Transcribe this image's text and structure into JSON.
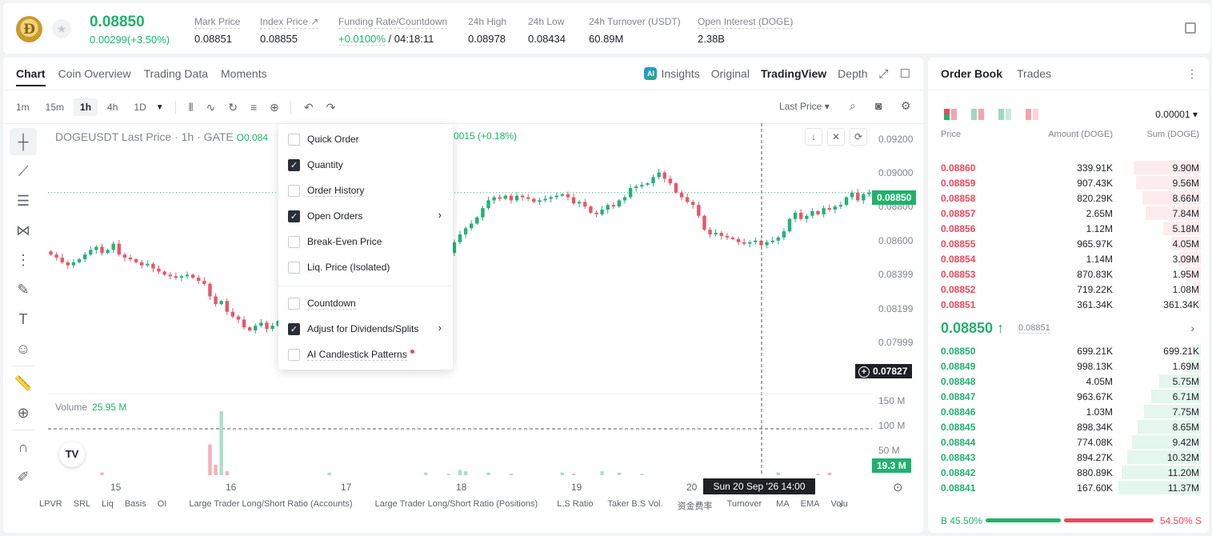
{
  "header": {
    "coin_symbol": "Ð",
    "last_price": "0.08850",
    "change": "0.00299(+3.50%)",
    "stats": [
      {
        "label": "Mark Price",
        "value": "0.08851"
      },
      {
        "label": "Index Price ↗",
        "value": "0.08855"
      },
      {
        "label": "Funding Rate/Countdown",
        "value_green": "+0.0100%",
        "value": " / 04:18:11"
      },
      {
        "label": "24h High",
        "value": "0.08978"
      },
      {
        "label": "24h Low",
        "value": "0.08434"
      },
      {
        "label": "24h Turnover (USDT)",
        "value": "60.89M"
      },
      {
        "label": "Open Interest (DOGE)",
        "value": "2.38B"
      }
    ]
  },
  "chart_tabs": [
    "Chart",
    "Coin Overview",
    "Trading Data",
    "Moments"
  ],
  "view_tabs": {
    "insights": "Insights",
    "original": "Original",
    "tradingview": "TradingView",
    "depth": "Depth"
  },
  "timeframes": [
    "1m",
    "15m",
    "1h",
    "4h",
    "1D"
  ],
  "price_source": "Last Price ▾",
  "symbol_line": {
    "text": "DOGEUSDT Last Price · 1h · GATE",
    "ohlc": "O0.084",
    "change": "0015 (+0.18%)"
  },
  "dropdown": {
    "items": [
      {
        "label": "Quick Order",
        "checked": false
      },
      {
        "label": "Quantity",
        "checked": true
      },
      {
        "label": "Order History",
        "checked": false,
        "dashed": true
      },
      {
        "label": "Open Orders",
        "checked": true,
        "arrow": true
      },
      {
        "label": "Break-Even Price",
        "checked": false
      },
      {
        "label": "Liq. Price (Isolated)",
        "checked": false
      },
      {
        "label": "Countdown",
        "checked": false,
        "dashed": true
      },
      {
        "label": "Adjust for Dividends/Splits",
        "checked": true,
        "arrow": true
      },
      {
        "label": "AI Candlestick Patterns",
        "checked": false,
        "dashed": true,
        "dot": true
      }
    ]
  },
  "chart_data": {
    "type": "candlestick",
    "price_ticks": [
      "0.09200",
      "0.09000",
      "0.08800",
      "0.08600",
      "0.08399",
      "0.08199",
      "0.07999"
    ],
    "current_price_tag": "0.08850",
    "crosshair_price_tag": "0.07827",
    "volume_ticks": [
      "150 M",
      "100 M",
      "50 M"
    ],
    "volume_tag": "19.3 M",
    "volume_label": "Volume",
    "volume_value": "25.95 M",
    "x_ticks": [
      "15",
      "16",
      "17",
      "18",
      "19",
      "20"
    ],
    "crosshair_time": "Sun 20 Sep '26   14:00",
    "closes": [
      0.0845,
      0.0843,
      0.084,
      0.0838,
      0.084,
      0.0842,
      0.0845,
      0.0848,
      0.085,
      0.0846,
      0.0848,
      0.0852,
      0.0845,
      0.0843,
      0.0842,
      0.084,
      0.0838,
      0.0839,
      0.0836,
      0.0834,
      0.0832,
      0.0831,
      0.083,
      0.0831,
      0.0832,
      0.083,
      0.0828,
      0.0826,
      0.0818,
      0.0813,
      0.0815,
      0.0808,
      0.0805,
      0.0803,
      0.0798,
      0.0796,
      0.0799,
      0.0801,
      0.0797,
      0.0799,
      0.0802,
      0.0801,
      0.0799,
      0.0801,
      0.08,
      0.0799,
      0.08,
      0.0798,
      0.0799,
      0.08,
      0.0801,
      0.08,
      0.0801,
      0.0802,
      0.0804,
      0.0806,
      0.0808,
      0.081,
      0.0812,
      0.0814,
      0.0818,
      0.082,
      0.0824,
      0.0828,
      0.0833,
      0.0838,
      0.084,
      0.0841,
      0.0842,
      0.0843,
      0.0846,
      0.0853,
      0.0858,
      0.0862,
      0.0865,
      0.0869,
      0.0875,
      0.088,
      0.0882,
      0.0881,
      0.0883,
      0.088,
      0.0883,
      0.0882,
      0.0881,
      0.0879,
      0.088,
      0.0881,
      0.0882,
      0.0883,
      0.0884,
      0.0882,
      0.0878,
      0.0879,
      0.0876,
      0.0872,
      0.0871,
      0.0874,
      0.0877,
      0.0876,
      0.088,
      0.0882,
      0.0888,
      0.0889,
      0.089,
      0.0891,
      0.0895,
      0.0898,
      0.0894,
      0.0891,
      0.0885,
      0.0882,
      0.0879,
      0.0877,
      0.087,
      0.0861,
      0.0858,
      0.0859,
      0.0857,
      0.0856,
      0.0855,
      0.0853,
      0.0852,
      0.0853,
      0.0854,
      0.0851,
      0.0853,
      0.0854,
      0.0856,
      0.086,
      0.0868,
      0.0872,
      0.0868,
      0.087,
      0.0873,
      0.0871,
      0.0875,
      0.0874,
      0.0876,
      0.0877,
      0.0882,
      0.0885,
      0.088,
      0.0884,
      0.0885
    ],
    "volumes": [
      8,
      6,
      5,
      7,
      6,
      9,
      12,
      8,
      10,
      14,
      9,
      7,
      5,
      6,
      8,
      7,
      6,
      5,
      6,
      7,
      5,
      9,
      8,
      6,
      7,
      10,
      8,
      12,
      35,
      20,
      60,
      15,
      12,
      10,
      8,
      9,
      7,
      6,
      12,
      8,
      7,
      10,
      6,
      8,
      9,
      7,
      6,
      5,
      9,
      14,
      8,
      7,
      6,
      10,
      8,
      7,
      9,
      8,
      6,
      10,
      9,
      7,
      8,
      10,
      6,
      9,
      14,
      11,
      7,
      12,
      13,
      10,
      16,
      15,
      12,
      9,
      10,
      14,
      12,
      10,
      11,
      13,
      12,
      9,
      12,
      10,
      11,
      9,
      10,
      12,
      14,
      11,
      13,
      10,
      12,
      8,
      11,
      15,
      12,
      10,
      14,
      12,
      9,
      10,
      13,
      12,
      9,
      8,
      7,
      6,
      8,
      9,
      8,
      7,
      9,
      10,
      8,
      7,
      9,
      8,
      7,
      9,
      10,
      11,
      9,
      8,
      10,
      12,
      14,
      11,
      10,
      9,
      12,
      10,
      11,
      13,
      12,
      14,
      11,
      10,
      12,
      9
    ]
  },
  "indicators": [
    "LPVR",
    "SRL",
    "Liq",
    "Basis",
    "OI",
    "Large Trader Long/Short Ratio (Accounts)",
    "Large Trader Long/Short Ratio (Positions)",
    "L.S Ratio",
    "Taker B.S Vol.",
    "资金费率",
    "Turnover",
    "MA",
    "EMA",
    "Volu"
  ],
  "order_book": {
    "tabs": [
      "Order Book",
      "Trades"
    ],
    "precision": "0.00001 ▾",
    "headers": {
      "price": "Price",
      "amount": "Amount (DOGE)",
      "sum": "Sum (DOGE)"
    },
    "asks": [
      {
        "price": "0.08860",
        "amount": "339.91K",
        "sum": "9.90M",
        "depth": 0.8
      },
      {
        "price": "0.08859",
        "amount": "907.43K",
        "sum": "9.56M",
        "depth": 0.77
      },
      {
        "price": "0.08858",
        "amount": "820.29K",
        "sum": "8.66M",
        "depth": 0.7
      },
      {
        "price": "0.08857",
        "amount": "2.65M",
        "sum": "7.84M",
        "depth": 0.66
      },
      {
        "price": "0.08856",
        "amount": "1.12M",
        "sum": "5.18M",
        "depth": 0.45
      },
      {
        "price": "0.08855",
        "amount": "965.97K",
        "sum": "4.05M",
        "depth": 0.35
      },
      {
        "price": "0.08854",
        "amount": "1.14M",
        "sum": "3.09M",
        "depth": 0.27
      },
      {
        "price": "0.08853",
        "amount": "870.83K",
        "sum": "1.95M",
        "depth": 0.18
      },
      {
        "price": "0.08852",
        "amount": "719.22K",
        "sum": "1.08M",
        "depth": 0.1
      },
      {
        "price": "0.08851",
        "amount": "361.34K",
        "sum": "361.34K",
        "depth": 0.03
      }
    ],
    "mid_price": "0.08850 ↑",
    "mark_price": "0.08851",
    "bids": [
      {
        "price": "0.08850",
        "amount": "699.21K",
        "sum": "699.21K",
        "depth": 0.06
      },
      {
        "price": "0.08849",
        "amount": "998.13K",
        "sum": "1.69M",
        "depth": 0.15
      },
      {
        "price": "0.08848",
        "amount": "4.05M",
        "sum": "5.75M",
        "depth": 0.5
      },
      {
        "price": "0.08847",
        "amount": "963.67K",
        "sum": "6.71M",
        "depth": 0.59
      },
      {
        "price": "0.08846",
        "amount": "1.03M",
        "sum": "7.75M",
        "depth": 0.68
      },
      {
        "price": "0.08845",
        "amount": "898.34K",
        "sum": "8.65M",
        "depth": 0.75
      },
      {
        "price": "0.08844",
        "amount": "774.08K",
        "sum": "9.42M",
        "depth": 0.82
      },
      {
        "price": "0.08843",
        "amount": "894.27K",
        "sum": "10.32M",
        "depth": 0.88
      },
      {
        "price": "0.08842",
        "amount": "880.89K",
        "sum": "11.20M",
        "depth": 0.94
      },
      {
        "price": "0.08841",
        "amount": "167.60K",
        "sum": "11.37M",
        "depth": 0.98
      }
    ],
    "buy_ratio": "B 45.50%",
    "sell_ratio": "54.50% S",
    "buy_fraction": 0.455
  }
}
